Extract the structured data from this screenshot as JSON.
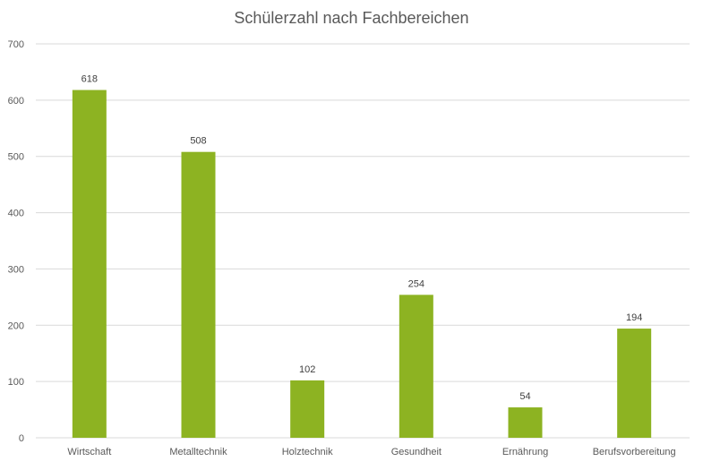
{
  "chart_data": {
    "type": "bar",
    "title": "Schülerzahl nach Fachbereichen",
    "categories": [
      "Wirtschaft",
      "Metalltechnik",
      "Holztechnik",
      "Gesundheit",
      "Ernährung",
      "Berufsvorbereitung"
    ],
    "values": [
      618,
      508,
      102,
      254,
      54,
      194
    ],
    "ylim": [
      0,
      700
    ],
    "yticks": [
      0,
      100,
      200,
      300,
      400,
      500,
      600,
      700
    ],
    "grid": true,
    "bar_color": "#8db322",
    "grid_color": "#d9d9d9",
    "text_color": "#595959",
    "data_labels": [
      "618",
      "508",
      "102",
      "254",
      "54",
      "194"
    ]
  }
}
